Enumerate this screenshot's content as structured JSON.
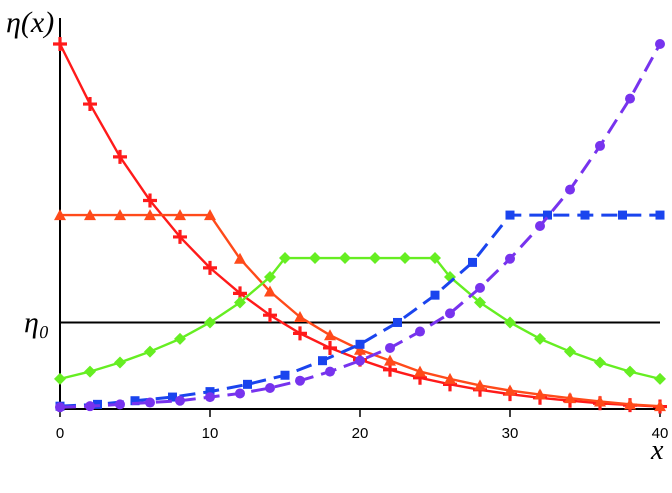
{
  "chart_data": {
    "type": "line",
    "title": "",
    "xlabel": "x",
    "ylabel": "η(x)",
    "xlim": [
      0,
      40
    ],
    "ylim": [
      0,
      1
    ],
    "x_ticks": [
      "0",
      "10",
      "20",
      "30",
      "40"
    ],
    "reference_line": {
      "label": "η₀",
      "y": 0.235
    },
    "grid": false,
    "legend": "none",
    "series": [
      {
        "color": "#ff1a1a",
        "marker": "plus",
        "dashed": false,
        "x": [
          0,
          2,
          4,
          6,
          8,
          10,
          12,
          14,
          16,
          18,
          20,
          22,
          24,
          26,
          28,
          30,
          32,
          34,
          36,
          38,
          40
        ],
        "y": [
          1.0,
          0.835,
          0.69,
          0.57,
          0.47,
          0.385,
          0.315,
          0.255,
          0.205,
          0.165,
          0.133,
          0.105,
          0.083,
          0.065,
          0.05,
          0.038,
          0.028,
          0.02,
          0.013,
          0.008,
          0.004
        ]
      },
      {
        "color": "#ff4a1a",
        "marker": "triangle",
        "dashed": false,
        "x": [
          0,
          2,
          4,
          6,
          8,
          10,
          12,
          14,
          16,
          18,
          20,
          22,
          24,
          26,
          28,
          30,
          32,
          34,
          36,
          38,
          40
        ],
        "y": [
          0.53,
          0.53,
          0.53,
          0.53,
          0.53,
          0.53,
          0.41,
          0.32,
          0.25,
          0.2,
          0.16,
          0.13,
          0.1,
          0.08,
          0.062,
          0.048,
          0.037,
          0.027,
          0.018,
          0.01,
          0.005
        ]
      },
      {
        "color": "#66ee22",
        "marker": "diamond",
        "dashed": false,
        "x": [
          0,
          2,
          4,
          6,
          8,
          10,
          12,
          14,
          15,
          17,
          19,
          21,
          23,
          25,
          26,
          28,
          30,
          32,
          34,
          36,
          38,
          40
        ],
        "y": [
          0.08,
          0.1,
          0.125,
          0.155,
          0.19,
          0.235,
          0.29,
          0.36,
          0.412,
          0.412,
          0.412,
          0.412,
          0.412,
          0.412,
          0.36,
          0.29,
          0.235,
          0.19,
          0.155,
          0.125,
          0.1,
          0.08
        ]
      },
      {
        "color": "#1a44ee",
        "marker": "square",
        "dashed": true,
        "x": [
          0,
          2.5,
          5,
          7.5,
          10,
          12.5,
          15,
          17.5,
          20,
          22.5,
          25,
          27.5,
          30,
          32.5,
          35,
          37.5,
          40
        ],
        "y": [
          0.005,
          0.01,
          0.02,
          0.03,
          0.045,
          0.065,
          0.09,
          0.13,
          0.175,
          0.235,
          0.31,
          0.4,
          0.53,
          0.53,
          0.53,
          0.53,
          0.53
        ]
      },
      {
        "color": "#7733ee",
        "marker": "circle",
        "dashed": true,
        "x": [
          0,
          2,
          4,
          6,
          8,
          10,
          12,
          14,
          16,
          18,
          20,
          22,
          24,
          26,
          28,
          30,
          32,
          34,
          36,
          38,
          40
        ],
        "y": [
          0.002,
          0.005,
          0.01,
          0.015,
          0.02,
          0.03,
          0.04,
          0.055,
          0.075,
          0.1,
          0.13,
          0.165,
          0.21,
          0.26,
          0.33,
          0.41,
          0.5,
          0.6,
          0.72,
          0.85,
          1.0
        ]
      }
    ]
  }
}
